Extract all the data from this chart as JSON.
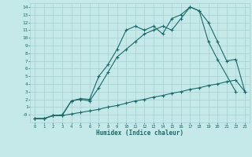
{
  "xlabel": "Humidex (Indice chaleur)",
  "background_color": "#c5e8e8",
  "grid_color": "#a8d0d0",
  "line_color": "#1a6b6b",
  "xlim": [
    -0.5,
    23.5
  ],
  "ylim": [
    -1.0,
    14.5
  ],
  "xtick_labels": [
    "0",
    "1",
    "2",
    "3",
    "4",
    "5",
    "6",
    "7",
    "8",
    "9",
    "10",
    "11",
    "12",
    "13",
    "14",
    "15",
    "16",
    "17",
    "18",
    "19",
    "20",
    "21",
    "22",
    "23"
  ],
  "xtick_vals": [
    0,
    1,
    2,
    3,
    4,
    5,
    6,
    7,
    8,
    9,
    10,
    11,
    12,
    13,
    14,
    15,
    16,
    17,
    18,
    19,
    20,
    21,
    22,
    23
  ],
  "ytick_labels": [
    "-0",
    "1",
    "2",
    "3",
    "4",
    "5",
    "6",
    "7",
    "8",
    "9",
    "10",
    "11",
    "12",
    "13",
    "14"
  ],
  "ytick_vals": [
    0,
    1,
    2,
    3,
    4,
    5,
    6,
    7,
    8,
    9,
    10,
    11,
    12,
    13,
    14
  ],
  "line1_x": [
    0,
    1,
    2,
    3,
    4,
    5,
    6,
    7,
    8,
    9,
    10,
    11,
    12,
    13,
    14,
    15,
    16,
    17,
    18,
    19,
    20,
    21,
    22,
    23
  ],
  "line1_y": [
    -0.5,
    -0.5,
    -0.1,
    -0.1,
    0.1,
    0.3,
    0.5,
    0.7,
    1.0,
    1.2,
    1.5,
    1.8,
    2.0,
    2.3,
    2.5,
    2.8,
    3.0,
    3.3,
    3.5,
    3.8,
    4.0,
    4.3,
    4.5,
    3.0
  ],
  "line2_x": [
    0,
    1,
    2,
    3,
    4,
    5,
    6,
    7,
    8,
    9,
    10,
    11,
    12,
    13,
    14,
    15,
    16,
    17,
    18,
    19,
    20,
    22
  ],
  "line2_y": [
    -0.5,
    -0.5,
    -0.1,
    -0.1,
    1.8,
    2.0,
    1.8,
    3.5,
    5.5,
    7.5,
    8.5,
    9.5,
    10.5,
    11.0,
    11.5,
    11.0,
    12.5,
    14.0,
    13.5,
    9.5,
    7.2,
    3.0
  ],
  "line3_x": [
    0,
    1,
    2,
    3,
    4,
    5,
    6,
    7,
    8,
    9,
    10,
    11,
    12,
    13,
    14,
    15,
    16,
    17,
    18,
    19,
    20,
    21,
    22,
    23
  ],
  "line3_y": [
    -0.5,
    -0.5,
    -0.1,
    0.0,
    1.8,
    2.1,
    2.0,
    5.0,
    6.5,
    8.5,
    11.0,
    11.5,
    11.0,
    11.5,
    10.5,
    12.5,
    13.0,
    14.0,
    13.5,
    12.0,
    9.5,
    7.0,
    7.2,
    3.0
  ]
}
